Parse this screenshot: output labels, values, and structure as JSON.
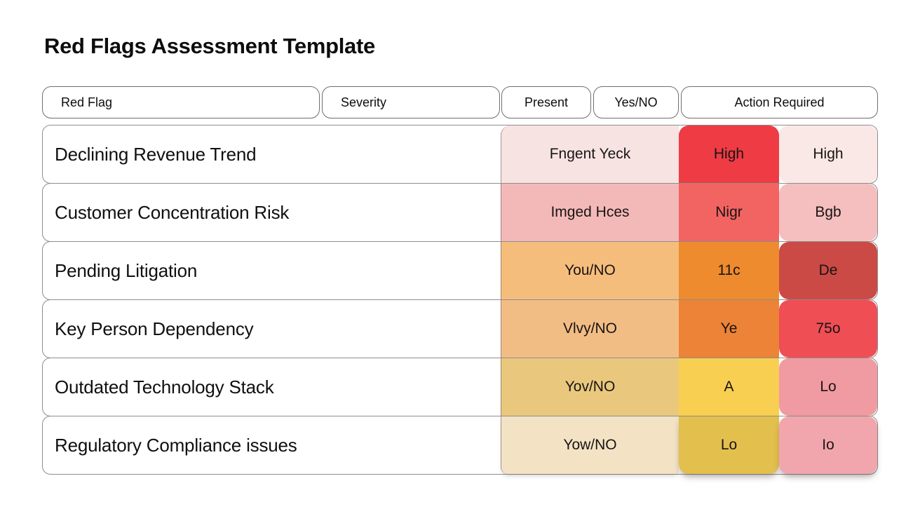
{
  "title": "Red Flags Assessment Template",
  "table": {
    "headers": [
      {
        "label": "Red Flag"
      },
      {
        "label": "Severity"
      },
      {
        "label": "Present"
      },
      {
        "label": "Yes/NO"
      },
      {
        "label": "Action Required"
      }
    ],
    "rows": [
      {
        "red_flag": "Declining Revenue Trend",
        "present": "Fngent Yeck",
        "yes_no": "High",
        "action": "High",
        "colors": {
          "present": "#f8e3e3",
          "yes_no": "#ee3b44",
          "action": "#f9e8e6"
        }
      },
      {
        "red_flag": "Customer Concentration Risk",
        "present": "Imged Hces",
        "yes_no": "Nigr",
        "action": "Bgb",
        "colors": {
          "present": "#f3b9b8",
          "yes_no": "#f26462",
          "action": "#f4bfbe"
        }
      },
      {
        "red_flag": "Pending Litigation",
        "present": "You/NO",
        "yes_no": "11c",
        "action": "De",
        "colors": {
          "present": "#f5bd7c",
          "yes_no": "#ee8b2e",
          "action": "#cb4a45"
        }
      },
      {
        "red_flag": "Key Person Dependency",
        "present": "Vlvy/NO",
        "yes_no": "Ye",
        "action": "75o",
        "colors": {
          "present": "#f2bd85",
          "yes_no": "#ec8336",
          "action": "#ef4e55"
        }
      },
      {
        "red_flag": "Outdated Technology Stack",
        "present": "Yov/NO",
        "yes_no": "A",
        "action": "Lo",
        "colors": {
          "present": "#e9c87e",
          "yes_no": "#f8cf51",
          "action": "#ef9ba1"
        }
      },
      {
        "red_flag": "Regulatory Compliance issues",
        "present": "Yow/NO",
        "yes_no": "Lo",
        "action": "Io",
        "colors": {
          "present": "#f3e3c4",
          "yes_no": "#e3bf4d",
          "action": "#f1a5ac"
        }
      }
    ]
  }
}
